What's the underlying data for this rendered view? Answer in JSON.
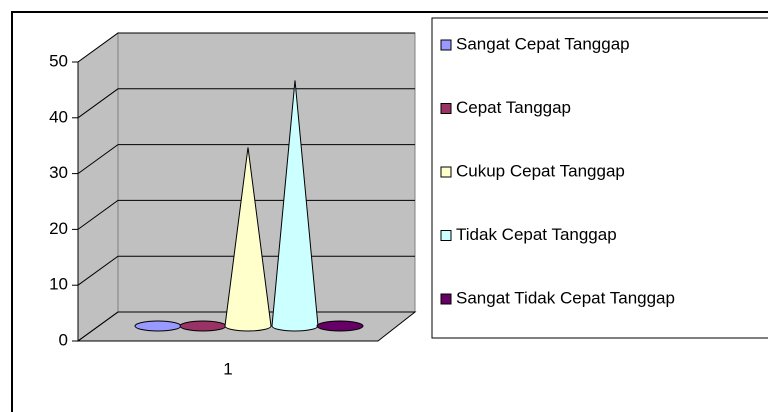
{
  "chart_data": {
    "type": "cone",
    "categories": [
      "1"
    ],
    "series": [
      {
        "name": "Sangat Cepat Tanggap",
        "color": "#9999ff",
        "values": [
          0
        ]
      },
      {
        "name": "Cepat Tanggap",
        "color": "#993366",
        "values": [
          0
        ]
      },
      {
        "name": "Cukup Cepat Tanggap",
        "color": "#ffffcc",
        "values": [
          32
        ]
      },
      {
        "name": "Tidak Cepat Tanggap",
        "color": "#ccffff",
        "values": [
          44
        ]
      },
      {
        "name": "Sangat Tidak Cepat Tanggap",
        "color": "#660066",
        "values": [
          0
        ]
      }
    ],
    "ylim": [
      0,
      50
    ],
    "yticks": [
      0,
      10,
      20,
      30,
      40,
      50
    ],
    "grid": true,
    "legend": "right"
  }
}
